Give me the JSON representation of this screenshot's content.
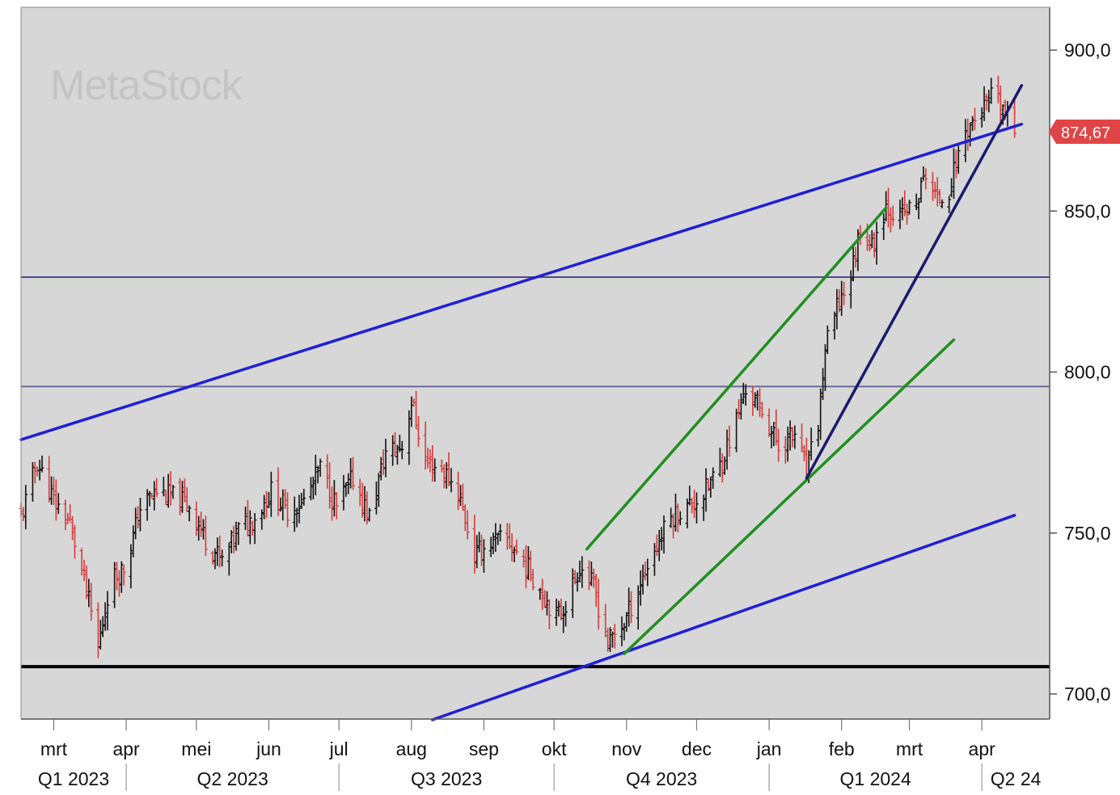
{
  "watermark": "MetaStock",
  "last_price_label": "874,67",
  "chart_data": {
    "type": "ohlc",
    "y_ticks": [
      {
        "value": 900,
        "label": "900,0"
      },
      {
        "value": 850,
        "label": "850,0"
      },
      {
        "value": 800,
        "label": "800,0"
      },
      {
        "value": 750,
        "label": "750,0"
      },
      {
        "value": 700,
        "label": "700,0"
      }
    ],
    "ylim": [
      692,
      912
    ],
    "x_range": [
      "2023-02-15",
      "2024-04-30"
    ],
    "months": [
      {
        "label": "mrt",
        "date": "2023-03-01"
      },
      {
        "label": "apr",
        "date": "2023-04-01"
      },
      {
        "label": "mei",
        "date": "2023-05-01"
      },
      {
        "label": "jun",
        "date": "2023-06-01"
      },
      {
        "label": "jul",
        "date": "2023-07-01"
      },
      {
        "label": "aug",
        "date": "2023-08-01"
      },
      {
        "label": "sep",
        "date": "2023-09-01"
      },
      {
        "label": "okt",
        "date": "2023-10-01"
      },
      {
        "label": "nov",
        "date": "2023-11-01"
      },
      {
        "label": "dec",
        "date": "2023-12-01"
      },
      {
        "label": "jan",
        "date": "2024-01-01"
      },
      {
        "label": "feb",
        "date": "2024-02-01"
      },
      {
        "label": "mrt",
        "date": "2024-03-01"
      },
      {
        "label": "apr",
        "date": "2024-04-01"
      }
    ],
    "quarters": [
      {
        "label": "Q1 2023",
        "start": "2023-02-15",
        "end": "2023-04-01"
      },
      {
        "label": "Q2 2023",
        "start": "2023-04-01",
        "end": "2023-07-01"
      },
      {
        "label": "Q3 2023",
        "start": "2023-07-01",
        "end": "2023-10-01"
      },
      {
        "label": "Q4 2023",
        "start": "2023-10-01",
        "end": "2024-01-01"
      },
      {
        "label": "Q1 2024",
        "start": "2024-01-01",
        "end": "2024-04-01"
      },
      {
        "label": "Q2 24",
        "start": "2024-04-01",
        "end": "2024-04-30"
      }
    ],
    "anchors": [
      [
        "2023-02-15",
        755
      ],
      [
        "2023-02-22",
        772
      ],
      [
        "2023-03-01",
        760
      ],
      [
        "2023-03-08",
        753
      ],
      [
        "2023-03-15",
        732
      ],
      [
        "2023-03-20",
        714
      ],
      [
        "2023-03-25",
        735
      ],
      [
        "2023-04-01",
        740
      ],
      [
        "2023-04-07",
        758
      ],
      [
        "2023-04-14",
        763
      ],
      [
        "2023-04-21",
        761
      ],
      [
        "2023-04-28",
        759
      ],
      [
        "2023-05-05",
        748
      ],
      [
        "2023-05-12",
        741
      ],
      [
        "2023-05-19",
        751
      ],
      [
        "2023-05-26",
        755
      ],
      [
        "2023-06-02",
        763
      ],
      [
        "2023-06-09",
        757
      ],
      [
        "2023-06-16",
        760
      ],
      [
        "2023-06-23",
        770
      ],
      [
        "2023-06-30",
        758
      ],
      [
        "2023-07-07",
        767
      ],
      [
        "2023-07-14",
        755
      ],
      [
        "2023-07-21",
        775
      ],
      [
        "2023-07-28",
        777
      ],
      [
        "2023-08-01",
        791
      ],
      [
        "2023-08-07",
        772
      ],
      [
        "2023-08-14",
        770
      ],
      [
        "2023-08-21",
        763
      ],
      [
        "2023-08-28",
        743
      ],
      [
        "2023-09-04",
        747
      ],
      [
        "2023-09-11",
        748
      ],
      [
        "2023-09-18",
        741
      ],
      [
        "2023-09-25",
        733
      ],
      [
        "2023-10-02",
        724
      ],
      [
        "2023-10-06",
        728
      ],
      [
        "2023-10-12",
        740
      ],
      [
        "2023-10-18",
        733
      ],
      [
        "2023-10-24",
        716
      ],
      [
        "2023-10-31",
        722
      ],
      [
        "2023-11-06",
        733
      ],
      [
        "2023-11-13",
        745
      ],
      [
        "2023-11-20",
        755
      ],
      [
        "2023-11-27",
        758
      ],
      [
        "2023-12-04",
        762
      ],
      [
        "2023-12-11",
        771
      ],
      [
        "2023-12-18",
        785
      ],
      [
        "2023-12-22",
        795
      ],
      [
        "2023-12-29",
        788
      ],
      [
        "2024-01-05",
        777
      ],
      [
        "2024-01-12",
        781
      ],
      [
        "2024-01-17",
        769
      ],
      [
        "2024-01-22",
        784
      ],
      [
        "2024-01-25",
        807
      ],
      [
        "2024-01-31",
        822
      ],
      [
        "2024-02-05",
        830
      ],
      [
        "2024-02-09",
        845
      ],
      [
        "2024-02-14",
        839
      ],
      [
        "2024-02-20",
        852
      ],
      [
        "2024-02-26",
        848
      ],
      [
        "2024-03-04",
        852
      ],
      [
        "2024-03-08",
        862
      ],
      [
        "2024-03-13",
        853
      ],
      [
        "2024-03-18",
        857
      ],
      [
        "2024-03-25",
        875
      ],
      [
        "2024-04-01",
        881
      ],
      [
        "2024-04-05",
        885
      ],
      [
        "2024-04-10",
        882
      ],
      [
        "2024-04-15",
        874.67
      ]
    ],
    "horizontal_lines": [
      {
        "value": 829.5,
        "color": "#4a4a8a",
        "width": 2
      },
      {
        "value": 795.5,
        "color": "#6a6a9a",
        "width": 2
      },
      {
        "value": 708.5,
        "color": "#000000",
        "width": 4
      }
    ],
    "trendlines": [
      {
        "from": [
          "2023-02-15",
          779
        ],
        "to": [
          "2024-04-18",
          877
        ],
        "color": "#1f1fd6",
        "width": 3.5
      },
      {
        "from": [
          "2023-08-10",
          692
        ],
        "to": [
          "2024-04-15",
          755.5
        ],
        "color": "#1f1fd6",
        "width": 3.5
      },
      {
        "from": [
          "2023-10-15",
          745
        ],
        "to": [
          "2024-02-20",
          851
        ],
        "color": "#1f8f1f",
        "width": 3.5
      },
      {
        "from": [
          "2023-10-31",
          712.5
        ],
        "to": [
          "2024-03-20",
          810
        ],
        "color": "#1f8f1f",
        "width": 3.5
      },
      {
        "from": [
          "2024-01-17",
          767
        ],
        "to": [
          "2024-04-18",
          889
        ],
        "color": "#1a1a6e",
        "width": 3.5
      }
    ],
    "grid": false,
    "colors": {
      "background": "#d7d7d7",
      "up": "#111111",
      "down": "#d83a3a",
      "price_tag": "#e04545"
    }
  }
}
